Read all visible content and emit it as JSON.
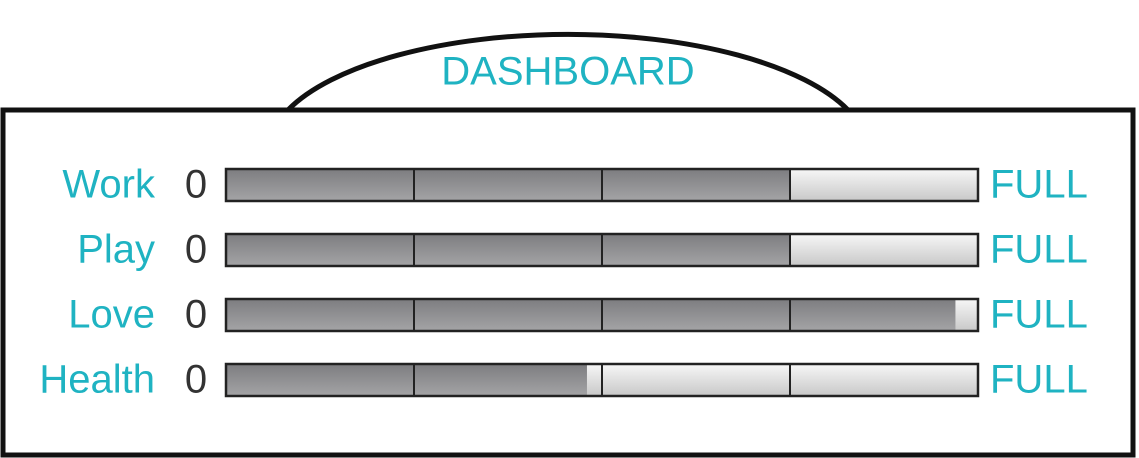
{
  "chart_data": {
    "type": "bar",
    "orientation": "horizontal",
    "title": "DASHBOARD",
    "categories": [
      "Work",
      "Play",
      "Love",
      "Health"
    ],
    "values": [
      75,
      75,
      97,
      48
    ],
    "xlim": [
      0,
      100
    ],
    "xticks": [
      {
        "value": 0,
        "label": "0"
      },
      {
        "value": 100,
        "label": "FULL"
      }
    ],
    "color": "#8f8f91"
  }
}
